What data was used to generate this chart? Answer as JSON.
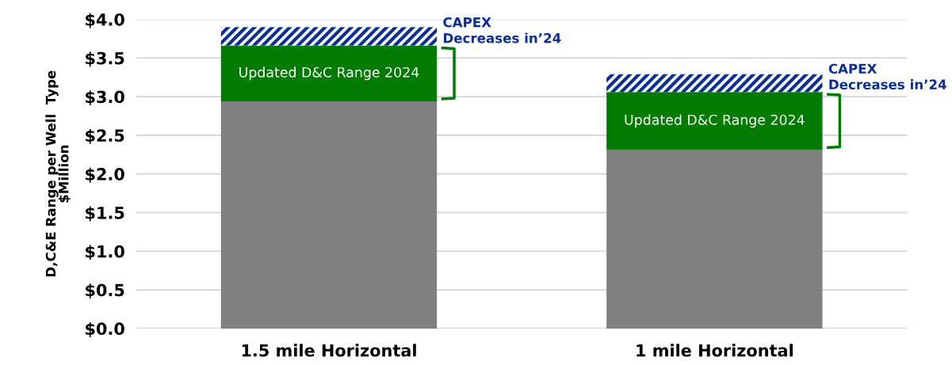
{
  "chart_data": {
    "type": "bar",
    "stacked": true,
    "ylabel": "D,C&E Range per Well  Type\n$Million",
    "categories": [
      "1.5 mile Horizontal",
      "1 mile Horizontal"
    ],
    "series": [
      {
        "color": "#808080",
        "values": [
          2.94,
          2.31
        ]
      },
      {
        "color": "#027b02",
        "values": [
          0.72,
          0.75
        ]
      },
      {
        "color": "#0b2f94",
        "values": [
          0.24,
          0.23
        ]
      }
    ],
    "ylim": [
      0,
      4.0
    ],
    "yticks": [
      {
        "value": 0,
        "label": "$0.0"
      },
      {
        "value": 0.5,
        "label": "$0.5"
      },
      {
        "value": 1.0,
        "label": "$1.0"
      },
      {
        "value": 1.5,
        "label": "$1.5"
      },
      {
        "value": 2.0,
        "label": "$2.0"
      },
      {
        "value": 2.5,
        "label": "$2.5"
      },
      {
        "value": 3.0,
        "label": "$3.0"
      },
      {
        "value": 3.5,
        "label": "$3.5"
      },
      {
        "value": 4.0,
        "label": "$4.0"
      }
    ],
    "grid": "y",
    "annotations": [
      "Updated D&C Range 2024",
      "Updated D&C Range 2024",
      "CAPEX\nDecreases in’24",
      "CAPEX\nDecreases in’24"
    ]
  }
}
